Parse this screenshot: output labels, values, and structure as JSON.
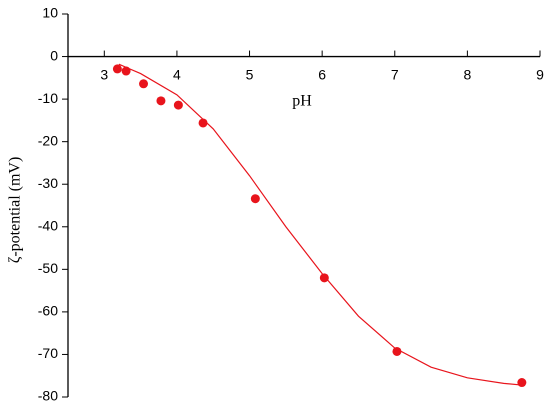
{
  "chart_data": {
    "type": "scatter",
    "x_label": "pH",
    "y_label": "ζ-potential (mV)",
    "xlim": [
      2.5,
      9
    ],
    "ylim": [
      -80,
      10
    ],
    "xticks": [
      3,
      4,
      5,
      6,
      7,
      8,
      9
    ],
    "yticks": [
      -80,
      -70,
      -60,
      -50,
      -40,
      -30,
      -20,
      -10,
      0,
      10
    ],
    "series": [
      {
        "color": "#e8141c",
        "x": [
          3.18,
          3.3,
          3.54,
          3.78,
          4.02,
          4.36,
          5.08,
          6.03,
          7.03,
          8.75
        ],
        "values": [
          -2.9,
          -3.4,
          -6.4,
          -10.4,
          -11.4,
          -15.6,
          -33.4,
          -52,
          -69.3,
          -76.6
        ]
      },
      {
        "color": "#e8141c",
        "line": true,
        "x": [
          3.2,
          3.5,
          4.0,
          4.5,
          5.0,
          5.5,
          6.0,
          6.5,
          7.0,
          7.5,
          8.0,
          8.5,
          8.75
        ],
        "values": [
          -1.8,
          -4,
          -9,
          -17,
          -28,
          -40,
          -51,
          -61,
          -68.5,
          -73,
          -75.5,
          -76.8,
          -77.2
        ]
      }
    ]
  }
}
